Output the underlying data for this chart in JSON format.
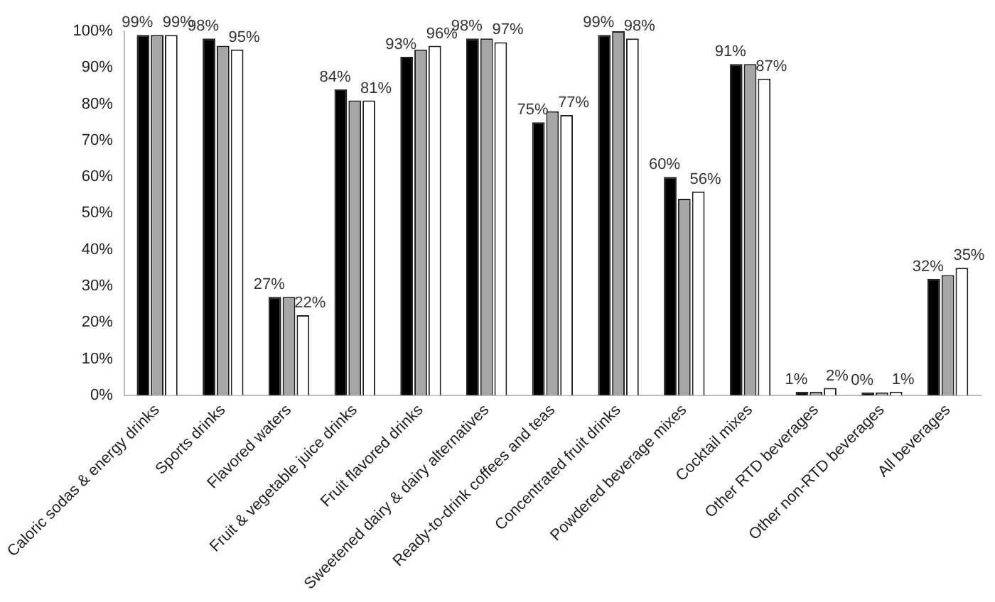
{
  "chart_data": {
    "type": "bar",
    "categories": [
      "Caloric sodas & energy drinks",
      "Sports drinks",
      "Flavored waters",
      "Fruit & vegetable juice drinks",
      "Fruit flavored drinks",
      "Sweetened dairy & dairy alternatives",
      "Ready-to-drink coffees and teas",
      "Concentrated fruit drinks",
      "Powdered beverage mixes",
      "Cocktail mixes",
      "Other RTD beverages",
      "Other non-RTD beverages",
      "All beverages"
    ],
    "series": [
      {
        "color": "#000000",
        "values": [
          99,
          98,
          27,
          84,
          93,
          98,
          75,
          99,
          60,
          91,
          1,
          0,
          32
        ],
        "value_labels": [
          "99%",
          "98%",
          "27%",
          "84%",
          "93%",
          "98%",
          "75%",
          "99%",
          "60%",
          "91%",
          "1%",
          "0%",
          "32%"
        ]
      },
      {
        "color": "#a6a6a6",
        "values": [
          99,
          96,
          27,
          81,
          95,
          98,
          78,
          100,
          54,
          91,
          1,
          0,
          33
        ]
      },
      {
        "color": "#ffffff",
        "values": [
          99,
          95,
          22,
          81,
          96,
          97,
          77,
          98,
          56,
          87,
          2,
          1,
          35
        ],
        "value_labels": [
          "99%",
          "95%",
          "22%",
          "81%",
          "96%",
          "97%",
          "77%",
          "98%",
          "56%",
          "87%",
          "2%",
          "1%",
          "35%"
        ]
      }
    ],
    "ylim": [
      0,
      100
    ],
    "yticks": [
      {
        "value": 0,
        "label": "0%"
      },
      {
        "value": 10,
        "label": "10%"
      },
      {
        "value": 20,
        "label": "20%"
      },
      {
        "value": 30,
        "label": "30%"
      },
      {
        "value": 40,
        "label": "40%"
      },
      {
        "value": 50,
        "label": "50%"
      },
      {
        "value": 60,
        "label": "60%"
      },
      {
        "value": 70,
        "label": "70%"
      },
      {
        "value": 80,
        "label": "80%"
      },
      {
        "value": 90,
        "label": "90%"
      },
      {
        "value": 100,
        "label": "100%"
      }
    ],
    "grid": false,
    "legend": false
  }
}
